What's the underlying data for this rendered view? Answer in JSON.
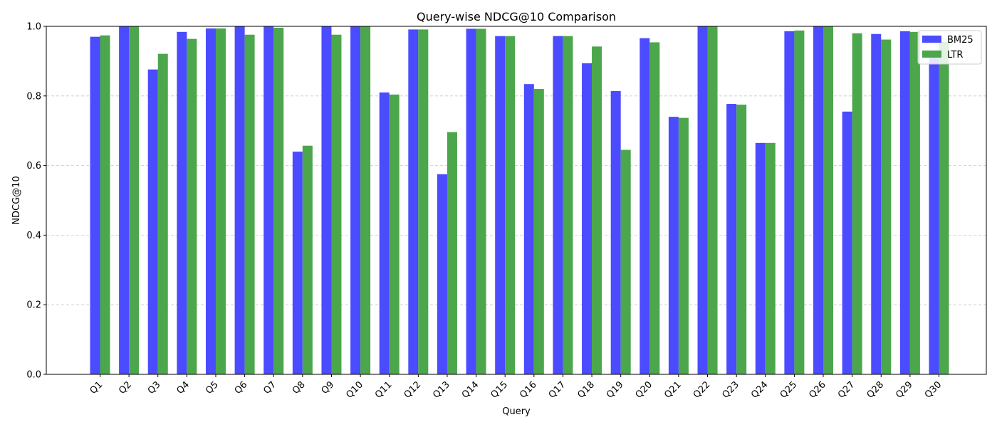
{
  "chart_data": {
    "type": "bar",
    "title": "Query-wise NDCG@10 Comparison",
    "xlabel": "Query",
    "ylabel": "NDCG@10",
    "ylim": [
      0,
      1.0
    ],
    "yticks": [
      "0.0",
      "0.2",
      "0.4",
      "0.6",
      "0.8",
      "1.0"
    ],
    "grid": "y-dashed",
    "legend_position": "top-right",
    "categories": [
      "Q1",
      "Q2",
      "Q3",
      "Q4",
      "Q5",
      "Q6",
      "Q7",
      "Q8",
      "Q9",
      "Q10",
      "Q11",
      "Q12",
      "Q13",
      "Q14",
      "Q15",
      "Q16",
      "Q17",
      "Q18",
      "Q19",
      "Q20",
      "Q21",
      "Q22",
      "Q23",
      "Q24",
      "Q25",
      "Q26",
      "Q27",
      "Q28",
      "Q29",
      "Q30"
    ],
    "series": [
      {
        "name": "BM25",
        "color": "#4b4bff",
        "values": [
          0.97,
          1.0,
          0.876,
          0.984,
          0.994,
          1.0,
          1.0,
          0.64,
          1.0,
          1.0,
          0.81,
          0.991,
          0.575,
          0.993,
          0.972,
          0.834,
          0.972,
          0.894,
          0.814,
          0.966,
          0.74,
          1.0,
          0.777,
          0.665,
          0.986,
          1.0,
          0.755,
          0.978,
          0.986,
          0.925
        ]
      },
      {
        "name": "LTR",
        "color": "#4ca64c",
        "values": [
          0.974,
          1.0,
          0.921,
          0.964,
          0.994,
          0.976,
          0.996,
          0.657,
          0.976,
          1.0,
          0.804,
          0.991,
          0.696,
          0.993,
          0.972,
          0.82,
          0.972,
          0.942,
          0.645,
          0.954,
          0.737,
          1.0,
          0.775,
          0.665,
          0.988,
          1.0,
          0.98,
          0.962,
          0.984,
          0.955
        ]
      }
    ]
  }
}
